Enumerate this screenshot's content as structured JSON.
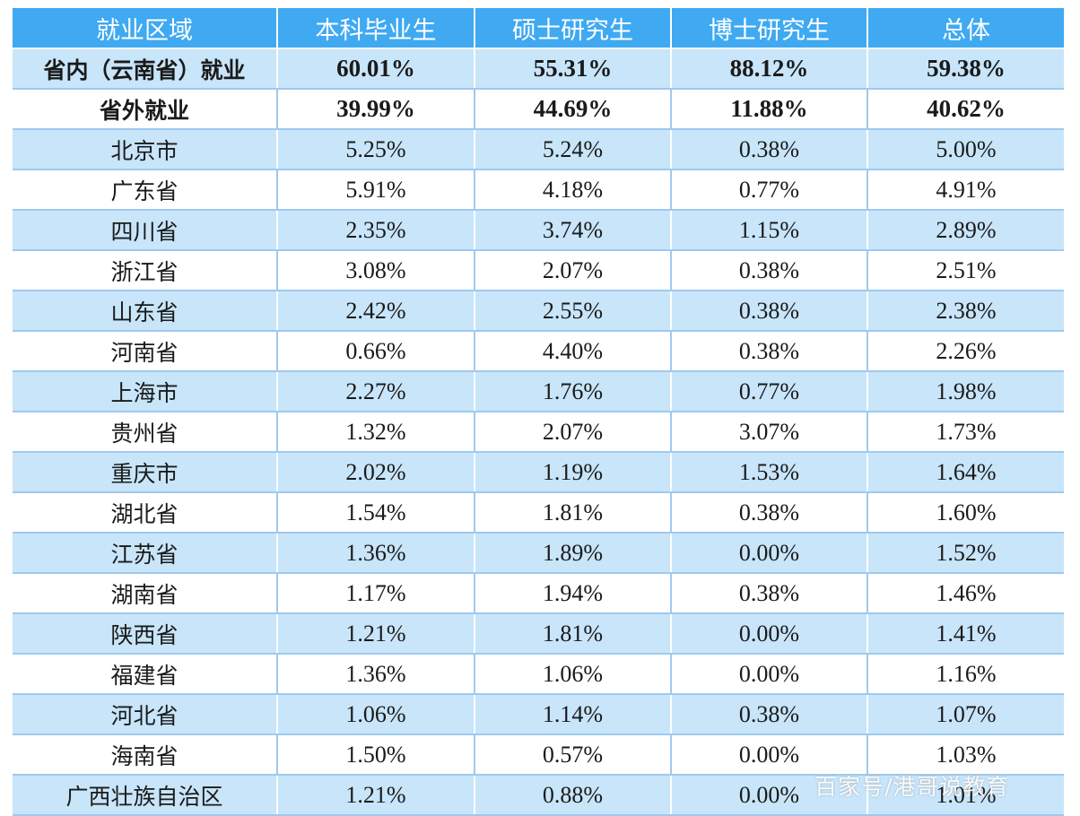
{
  "table": {
    "headers": [
      "就业区域",
      "本科毕业生",
      "硕士研究生",
      "博士研究生",
      "总体"
    ],
    "rows": [
      {
        "cells": [
          "省内（云南省）就业",
          "60.01%",
          "55.31%",
          "88.12%",
          "59.38%"
        ],
        "bold": true
      },
      {
        "cells": [
          "省外就业",
          "39.99%",
          "44.69%",
          "11.88%",
          "40.62%"
        ],
        "bold": true
      },
      {
        "cells": [
          "北京市",
          "5.25%",
          "5.24%",
          "0.38%",
          "5.00%"
        ]
      },
      {
        "cells": [
          "广东省",
          "5.91%",
          "4.18%",
          "0.77%",
          "4.91%"
        ]
      },
      {
        "cells": [
          "四川省",
          "2.35%",
          "3.74%",
          "1.15%",
          "2.89%"
        ]
      },
      {
        "cells": [
          "浙江省",
          "3.08%",
          "2.07%",
          "0.38%",
          "2.51%"
        ]
      },
      {
        "cells": [
          "山东省",
          "2.42%",
          "2.55%",
          "0.38%",
          "2.38%"
        ]
      },
      {
        "cells": [
          "河南省",
          "0.66%",
          "4.40%",
          "0.38%",
          "2.26%"
        ]
      },
      {
        "cells": [
          "上海市",
          "2.27%",
          "1.76%",
          "0.77%",
          "1.98%"
        ]
      },
      {
        "cells": [
          "贵州省",
          "1.32%",
          "2.07%",
          "3.07%",
          "1.73%"
        ]
      },
      {
        "cells": [
          "重庆市",
          "2.02%",
          "1.19%",
          "1.53%",
          "1.64%"
        ]
      },
      {
        "cells": [
          "湖北省",
          "1.54%",
          "1.81%",
          "0.38%",
          "1.60%"
        ]
      },
      {
        "cells": [
          "江苏省",
          "1.36%",
          "1.89%",
          "0.00%",
          "1.52%"
        ]
      },
      {
        "cells": [
          "湖南省",
          "1.17%",
          "1.94%",
          "0.38%",
          "1.46%"
        ]
      },
      {
        "cells": [
          "陕西省",
          "1.21%",
          "1.81%",
          "0.00%",
          "1.41%"
        ]
      },
      {
        "cells": [
          "福建省",
          "1.36%",
          "1.06%",
          "0.00%",
          "1.16%"
        ]
      },
      {
        "cells": [
          "河北省",
          "1.06%",
          "1.14%",
          "0.38%",
          "1.07%"
        ]
      },
      {
        "cells": [
          "海南省",
          "1.50%",
          "0.57%",
          "0.00%",
          "1.03%"
        ]
      },
      {
        "cells": [
          "广西壮族自治区",
          "1.21%",
          "0.88%",
          "0.00%",
          "1.01%"
        ]
      }
    ]
  },
  "watermark": "百家号/港哥说教育",
  "colors": {
    "header_bg": "#3fa9f2",
    "band_bg": "#c8e5fa",
    "plain_bg": "#ffffff",
    "text": "#1a1a1a"
  }
}
